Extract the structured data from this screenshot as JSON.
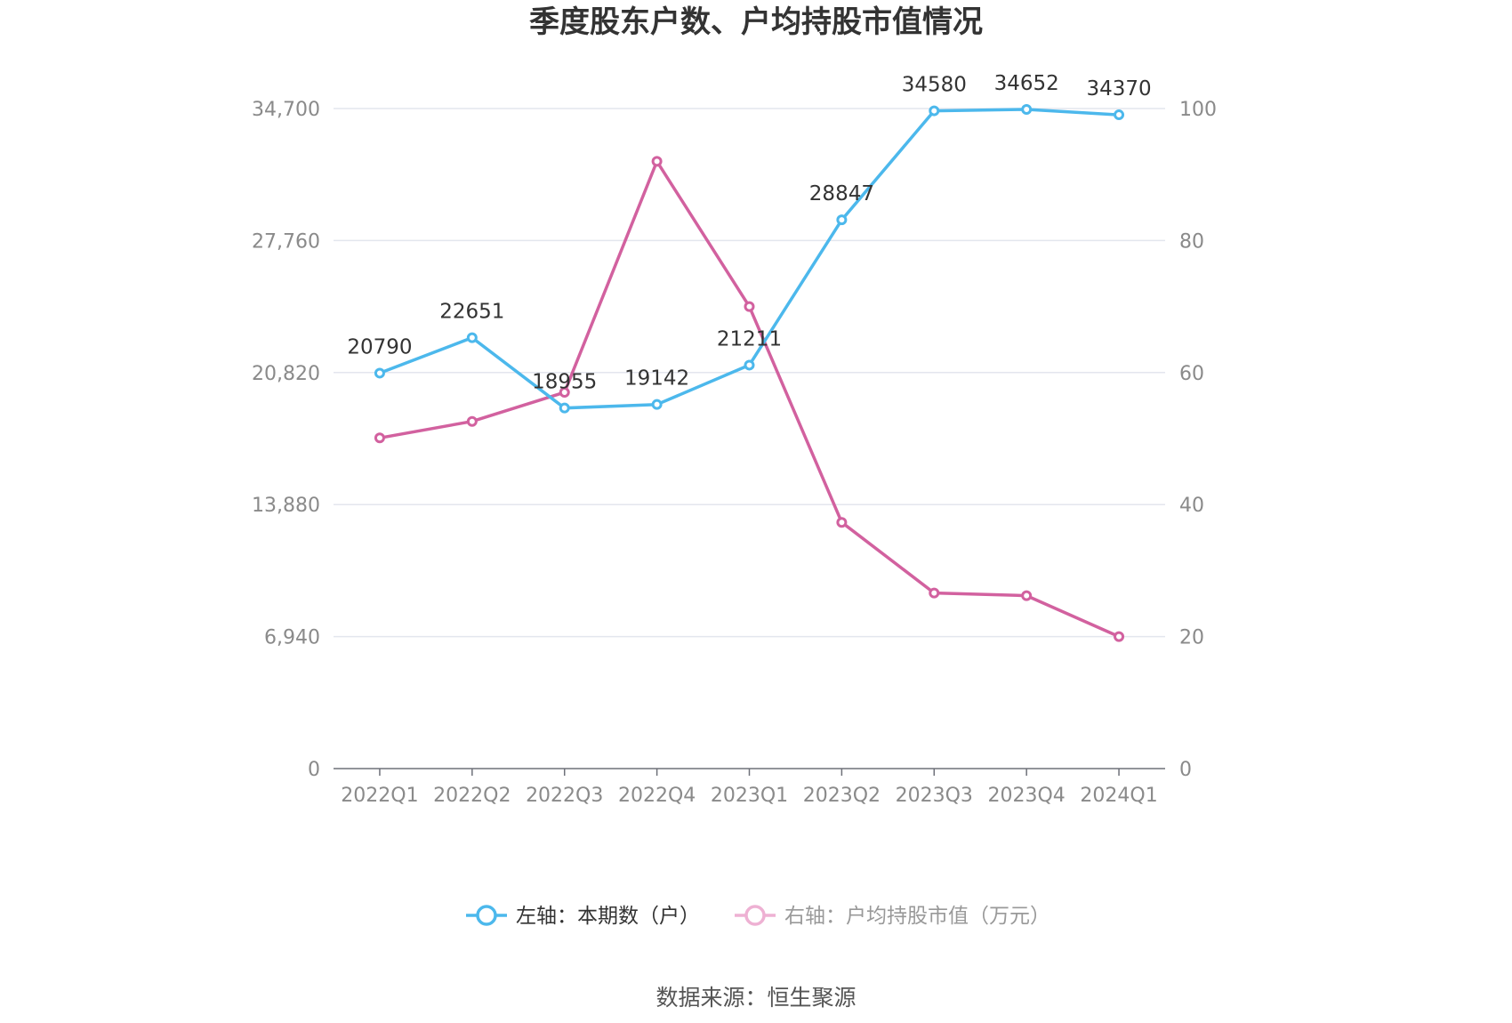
{
  "chart_data": {
    "type": "line",
    "title": "季度股东户数、户均持股市值情况",
    "categories": [
      "2022Q1",
      "2022Q2",
      "2022Q3",
      "2022Q4",
      "2023Q1",
      "2023Q2",
      "2023Q3",
      "2023Q4",
      "2024Q1"
    ],
    "left_axis": {
      "ylim": [
        0,
        34700
      ],
      "ticks": [
        0,
        6940,
        13880,
        20820,
        27760,
        34700
      ],
      "tick_labels": [
        "0",
        "6,940",
        "13,880",
        "20,820",
        "27,760",
        "34,700"
      ]
    },
    "right_axis": {
      "ylim": [
        0,
        100
      ],
      "ticks": [
        0,
        20,
        40,
        60,
        80,
        100
      ],
      "tick_labels": [
        "0",
        "20",
        "40",
        "60",
        "80",
        "100"
      ]
    },
    "series": [
      {
        "name": "左轴：本期数（户）",
        "axis": "left",
        "color": "#4cb8ec",
        "values": [
          20790,
          22651,
          18955,
          19142,
          21211,
          28847,
          34580,
          34652,
          34370
        ],
        "data_labels": [
          "20790",
          "22651",
          "18955",
          "19142",
          "21211",
          "28847",
          "34580",
          "34652",
          "34370"
        ]
      },
      {
        "name": "右轴：户均持股市值（万元）",
        "axis": "right",
        "color": "#d2619f",
        "values": [
          50.1,
          52.6,
          57.0,
          92.0,
          70.0,
          37.3,
          26.6,
          26.2,
          20.0
        ]
      }
    ],
    "grid": true,
    "legend_position": "bottom"
  },
  "source_text": "数据来源：恒生聚源"
}
